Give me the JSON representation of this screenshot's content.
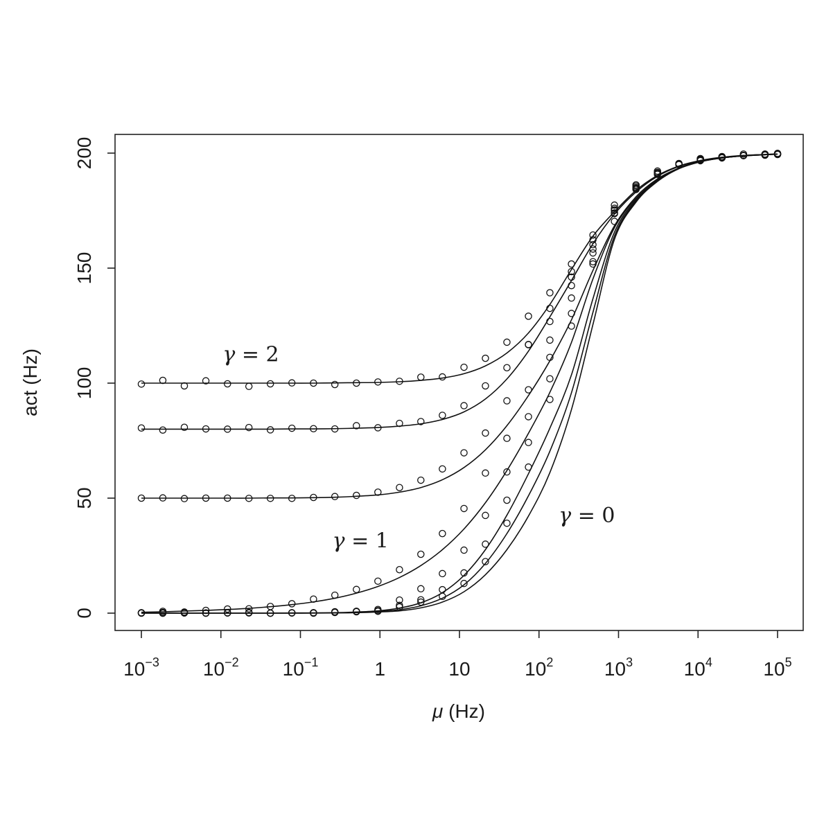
{
  "chart_data": {
    "type": "line",
    "x_scale": "log10",
    "xlim": [
      0.001,
      100000
    ],
    "ylim": [
      -8,
      208
    ],
    "xlabel": {
      "symbol": "μ",
      "unit": " (Hz)"
    },
    "ylabel": "act (Hz)",
    "grid": false,
    "legend": "none",
    "x_ticks": [
      {
        "value": 0.001,
        "base": "10",
        "exp": "−3"
      },
      {
        "value": 0.01,
        "base": "10",
        "exp": "−2"
      },
      {
        "value": 0.1,
        "base": "10",
        "exp": "−1"
      },
      {
        "value": 1,
        "base": "1",
        "exp": ""
      },
      {
        "value": 10,
        "base": "10",
        "exp": ""
      },
      {
        "value": 100,
        "base": "10",
        "exp": "2"
      },
      {
        "value": 1000,
        "base": "10",
        "exp": "3"
      },
      {
        "value": 10000,
        "base": "10",
        "exp": "4"
      },
      {
        "value": 100000,
        "base": "10",
        "exp": "5"
      }
    ],
    "y_ticks": [
      0,
      50,
      100,
      150,
      200
    ],
    "x": [
      0.001,
      0.00186,
      0.00347,
      0.00647,
      0.0121,
      0.0225,
      0.0419,
      0.0781,
      0.146,
      0.271,
      0.506,
      0.943,
      1.76,
      3.27,
      6.1,
      11.4,
      21.2,
      39.5,
      73.7,
      137,
      256,
      477,
      889,
      1660,
      3090,
      5750,
      10700,
      20000,
      37300,
      69500,
      100000
    ],
    "series": [
      {
        "curve": [
          100,
          100,
          100,
          100,
          100,
          100,
          100,
          100,
          100,
          100.1,
          100.2,
          100.3,
          100.6,
          101.2,
          102.2,
          104.1,
          107.5,
          113.1,
          121.8,
          134.2,
          149.4,
          163.9,
          174.5,
          183.8,
          190.3,
          194.4,
          196.8,
          198.2,
          199.0,
          199.4,
          199.6
        ],
        "points": [
          99.6,
          101.2,
          98.8,
          101.0,
          99.7,
          98.6,
          99.7,
          100.1,
          100.0,
          99.4,
          100.0,
          100.5,
          100.8,
          102.6,
          102.7,
          106.9,
          110.8,
          117.8,
          129.1,
          139.3,
          151.8,
          164.4,
          177.4,
          186.2,
          192.2,
          195.2,
          197.6,
          198.5,
          199.6,
          199.5,
          199.9
        ]
      },
      {
        "curve": [
          80,
          80,
          80,
          80,
          80,
          80,
          80,
          80.1,
          80.1,
          80.2,
          80.4,
          80.7,
          81.3,
          82.3,
          84.2,
          87.5,
          93.1,
          101.8,
          113.9,
          128.8,
          144.6,
          160.6,
          173.5,
          183.1,
          189.9,
          194.2,
          196.7,
          198.1,
          198.9,
          199.4,
          199.6
        ],
        "points": [
          80.5,
          79.6,
          80.8,
          80.1,
          80.0,
          80.7,
          79.7,
          80.4,
          80.2,
          80.1,
          81.5,
          80.6,
          82.5,
          83.3,
          86.0,
          90.2,
          98.8,
          106.7,
          116.7,
          126.8,
          148.5,
          162.3,
          176.0,
          184.5,
          191.0,
          195.4,
          197.5,
          198.3,
          199.0,
          199.5,
          199.6
        ]
      },
      {
        "curve": [
          50,
          50,
          50,
          50,
          50,
          50,
          50.1,
          50.1,
          50.2,
          50.4,
          50.8,
          51.4,
          52.6,
          54.6,
          58.0,
          63.3,
          71.0,
          81.5,
          94.6,
          109.7,
          127.5,
          149.0,
          168.4,
          181.0,
          188.8,
          193.5,
          196.4,
          197.9,
          198.9,
          199.3,
          199.6
        ],
        "points": [
          50.0,
          50.1,
          49.8,
          50.0,
          50.0,
          49.9,
          49.9,
          49.9,
          50.3,
          50.7,
          51.2,
          52.6,
          54.6,
          57.8,
          62.7,
          69.7,
          78.3,
          92.3,
          116.8,
          132.5,
          146.1,
          160.2,
          175.3,
          185.7,
          191.6,
          195.3,
          197.6,
          198.4,
          198.9,
          199.6,
          199.4
        ]
      },
      {
        "curve": [
          0.4,
          0.6,
          0.9,
          1.2,
          1.6,
          2.1,
          2.8,
          3.7,
          4.9,
          6.5,
          8.7,
          11.6,
          15.5,
          20.7,
          27.6,
          36.6,
          48.0,
          62.0,
          78.2,
          96.0,
          117.7,
          145.3,
          167.6,
          180.3,
          188.4,
          193.5,
          196.4,
          198.0,
          198.9,
          199.4,
          199.6
        ],
        "points": [
          0.1,
          0.8,
          0.5,
          1.2,
          1.8,
          1.9,
          2.9,
          4.1,
          6.1,
          7.8,
          10.3,
          13.9,
          18.9,
          25.6,
          34.6,
          45.5,
          60.9,
          76.0,
          97.1,
          118.7,
          142.4,
          158.3,
          175.1,
          185.1,
          191.5,
          195.4,
          196.7,
          198.4,
          199.0,
          199.4,
          199.6
        ]
      },
      {
        "curve": [
          0,
          0,
          0,
          0,
          0,
          0,
          0,
          0.1,
          0.1,
          0.2,
          0.5,
          1.0,
          2.2,
          4.5,
          8.9,
          16.4,
          27.6,
          42.6,
          60.6,
          80.4,
          103.6,
          136.7,
          165.6,
          179.7,
          188.0,
          193.4,
          196.4,
          197.9,
          198.8,
          199.3,
          199.5
        ],
        "points": [
          0.2,
          0.0,
          0.1,
          0.0,
          0.1,
          0.2,
          0.0,
          0.1,
          0.0,
          0.3,
          0.8,
          1.6,
          5.7,
          10.6,
          17.2,
          27.4,
          42.5,
          61.4,
          85.4,
          101.9,
          130.3,
          152.8,
          174.0,
          184.6,
          190.8,
          195.0,
          197.2,
          197.9,
          199.0,
          199.2,
          199.6
        ]
      },
      {
        "curve": [
          0,
          0,
          0,
          0,
          0,
          0,
          0,
          0,
          0.1,
          0.1,
          0.3,
          0.7,
          1.5,
          3.2,
          6.5,
          12.3,
          21.6,
          34.6,
          51.0,
          70.4,
          95.8,
          130.8,
          163.9,
          179.2,
          187.8,
          193.3,
          196.3,
          197.9,
          198.8,
          199.3,
          199.5
        ],
        "points": [
          0.0,
          0.0,
          0.1,
          0.1,
          0.1,
          0.1,
          0.0,
          0.2,
          0.2,
          0.6,
          0.8,
          1.1,
          3.4,
          5.8,
          10.2,
          17.5,
          30.0,
          49.1,
          74.2,
          111.2,
          137.0,
          156.6,
          173.7,
          185.0,
          191.4,
          195.0,
          197.2,
          198.3,
          198.9,
          199.1,
          199.5
        ]
      },
      {
        "curve": [
          0,
          0,
          0,
          0,
          0,
          0,
          0,
          0,
          0,
          0.1,
          0.2,
          0.5,
          1.0,
          2.3,
          4.8,
          9.3,
          16.7,
          27.6,
          42.2,
          61.1,
          88.5,
          125.5,
          162.5,
          178.7,
          187.7,
          193.2,
          196.2,
          197.9,
          198.8,
          199.3,
          199.5
        ],
        "points": [
          0.1,
          0.3,
          0.2,
          0.0,
          0.2,
          0.3,
          0.0,
          0.1,
          0.2,
          0.4,
          0.6,
          0.8,
          2.7,
          4.8,
          7.3,
          12.9,
          22.4,
          39.1,
          63.5,
          92.9,
          124.8,
          151.8,
          170.3,
          184.2,
          190.8,
          195.5,
          197.0,
          198.0,
          199.0,
          199.5,
          199.5
        ]
      }
    ],
    "annotations": [
      {
        "value": "2",
        "x": 0.0238,
        "y": 109.5
      },
      {
        "value": "1",
        "x": 0.57,
        "y": 28.5
      },
      {
        "value": "0",
        "x": 400,
        "y": 39.5
      }
    ]
  }
}
